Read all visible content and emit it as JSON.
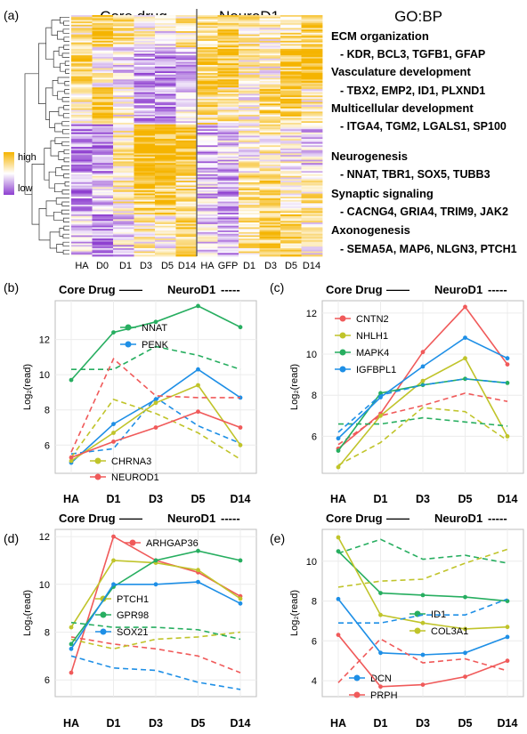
{
  "panel_a": {
    "panel_label": "(a)",
    "header_core": "Core drug",
    "header_neuro": "NeuroD1",
    "go_header": "GO:BP",
    "legend_high": "high",
    "legend_low": "low",
    "colors": {
      "high": "#f5b400",
      "mid": "#ffffff",
      "low": "#8e3fd0"
    },
    "columns": [
      "HA",
      "D0",
      "D1",
      "D3",
      "D5",
      "D14",
      "HA",
      "GFP",
      "D1",
      "D3",
      "D5",
      "D14"
    ],
    "go_terms": [
      {
        "title": "ECM organization",
        "genes": "- KDR, BCL3, TGFB1, GFAP"
      },
      {
        "title": "Vasculature development",
        "genes": "- TBX2, EMP2, ID1, PLXND1"
      },
      {
        "title": "Multicellular development",
        "genes": "- ITGA4, TGM2, LGALS1, SP100"
      },
      {
        "title": "Neurogenesis",
        "genes": "- NNAT, TBR1, SOX5, TUBB3"
      },
      {
        "title": "Synaptic signaling",
        "genes": "- CACNG4, GRIA4, TRIM9, JAK2"
      },
      {
        "title": "Axonogenesis",
        "genes": "- SEMA5A, MAP6, NLGN3, PTCH1"
      }
    ]
  },
  "chart_data": [
    {
      "type": "line",
      "panel_label": "(b)",
      "header_core": "Core Drug",
      "header_core_dash": "——",
      "header_neuro": "NeuroD1",
      "header_neuro_dash": "-----",
      "ylabel": "Log₂(read)",
      "categories": [
        "HA",
        "D1",
        "D3",
        "D5",
        "D14"
      ],
      "ylim": [
        4.4,
        14.2
      ],
      "yticks": [
        6,
        8,
        10,
        12
      ],
      "grid": true,
      "series": [
        {
          "name": "NNAT",
          "color": "#27ae60",
          "core": [
            9.7,
            12.4,
            13.0,
            13.9,
            12.7
          ],
          "neuro": [
            10.3,
            10.3,
            11.6,
            11.1,
            10.3
          ]
        },
        {
          "name": "PENK",
          "color": "#1e8fe6",
          "core": [
            5.0,
            7.2,
            8.6,
            10.3,
            8.7
          ],
          "neuro": [
            5.5,
            5.8,
            8.7,
            7.1,
            6.1
          ]
        },
        {
          "name": "CHRNA3",
          "color": "#c0c42a",
          "core": [
            5.1,
            6.7,
            8.4,
            9.4,
            6.0
          ],
          "neuro": [
            5.3,
            8.6,
            7.8,
            6.7,
            5.2
          ]
        },
        {
          "name": "NEUROD1",
          "color": "#f05a5a",
          "core": [
            5.3,
            6.2,
            7.0,
            7.9,
            7.0
          ],
          "neuro": [
            5.6,
            10.9,
            8.8,
            8.7,
            8.7
          ]
        }
      ]
    },
    {
      "type": "line",
      "panel_label": "(c)",
      "header_core": "Core Drug",
      "header_core_dash": "——",
      "header_neuro": "NeuroD1",
      "header_neuro_dash": "-----",
      "ylabel": "Log₂(read)",
      "categories": [
        "HA",
        "D1",
        "D3",
        "D5",
        "D14"
      ],
      "ylim": [
        4.2,
        12.6
      ],
      "yticks": [
        6,
        8,
        10,
        12
      ],
      "grid": true,
      "series": [
        {
          "name": "CNTN2",
          "color": "#f05a5a",
          "core": [
            5.4,
            7.1,
            10.1,
            12.3,
            9.5
          ],
          "neuro": [
            5.6,
            7.0,
            7.5,
            8.1,
            7.7
          ]
        },
        {
          "name": "NHLH1",
          "color": "#c0c42a",
          "core": [
            4.5,
            7.0,
            8.7,
            9.8,
            6.0
          ],
          "neuro": [
            4.6,
            5.7,
            7.4,
            7.2,
            5.8
          ]
        },
        {
          "name": "MAPK4",
          "color": "#27ae60",
          "core": [
            5.3,
            8.1,
            8.5,
            8.8,
            8.6
          ],
          "neuro": [
            6.6,
            6.6,
            6.9,
            6.7,
            6.5
          ]
        },
        {
          "name": "IGFBPL1",
          "color": "#1e8fe6",
          "core": [
            5.9,
            7.9,
            9.4,
            10.8,
            9.8
          ],
          "neuro": [
            6.2,
            8.0,
            8.5,
            8.8,
            8.6
          ]
        }
      ]
    },
    {
      "type": "line",
      "panel_label": "(d)",
      "header_core": "Core Drug",
      "header_core_dash": "——",
      "header_neuro": "NeuroD1",
      "header_neuro_dash": "-----",
      "ylabel": "Log₂(read)",
      "categories": [
        "HA",
        "D1",
        "D3",
        "D5",
        "D14"
      ],
      "ylim": [
        5.3,
        12.3
      ],
      "yticks": [
        6,
        8,
        10,
        12
      ],
      "grid": true,
      "series": [
        {
          "name": "ARHGAP36",
          "color": "#f05a5a",
          "core": [
            6.3,
            12.0,
            11.0,
            10.5,
            9.5
          ],
          "neuro": [
            7.8,
            7.5,
            7.3,
            7.0,
            6.3
          ]
        },
        {
          "name": "PTCH1",
          "color": "#c0c42a",
          "core": [
            8.2,
            11.0,
            10.9,
            10.6,
            9.4
          ],
          "neuro": [
            7.7,
            7.3,
            7.7,
            7.8,
            8.0
          ]
        },
        {
          "name": "GPR98",
          "color": "#27ae60",
          "core": [
            7.5,
            9.9,
            11.0,
            11.4,
            11.0
          ],
          "neuro": [
            8.4,
            8.2,
            8.2,
            8.1,
            7.7
          ]
        },
        {
          "name": "SOX21",
          "color": "#1e8fe6",
          "core": [
            7.3,
            10.0,
            10.0,
            10.1,
            9.2
          ],
          "neuro": [
            7.0,
            6.5,
            6.4,
            5.9,
            5.6
          ]
        }
      ]
    },
    {
      "type": "line",
      "panel_label": "(e)",
      "header_core": "Core Drug",
      "header_core_dash": "——",
      "header_neuro": "NeuroD1",
      "header_neuro_dash": "-----",
      "ylabel": "Log₂(read)",
      "categories": [
        "HA",
        "D1",
        "D3",
        "D5",
        "D14"
      ],
      "ylim": [
        3.2,
        11.6
      ],
      "yticks": [
        4,
        6,
        8,
        10
      ],
      "grid": true,
      "series": [
        {
          "name": "ID1",
          "color": "#27ae60",
          "core": [
            10.5,
            8.4,
            8.3,
            8.2,
            8.0
          ],
          "neuro": [
            10.4,
            11.1,
            10.1,
            10.3,
            9.9
          ]
        },
        {
          "name": "COL3A1",
          "color": "#c0c42a",
          "core": [
            11.2,
            7.3,
            6.9,
            6.6,
            6.7
          ],
          "neuro": [
            8.7,
            9.0,
            9.1,
            9.9,
            10.6
          ]
        },
        {
          "name": "DCN",
          "color": "#1e8fe6",
          "core": [
            8.1,
            5.4,
            5.3,
            5.4,
            6.2
          ],
          "neuro": [
            6.9,
            6.9,
            7.3,
            7.3,
            8.1
          ]
        },
        {
          "name": "PRPH",
          "color": "#f05a5a",
          "core": [
            6.3,
            3.7,
            3.8,
            4.2,
            5.0
          ],
          "neuro": [
            3.9,
            6.1,
            4.9,
            5.1,
            4.5
          ]
        }
      ]
    }
  ]
}
